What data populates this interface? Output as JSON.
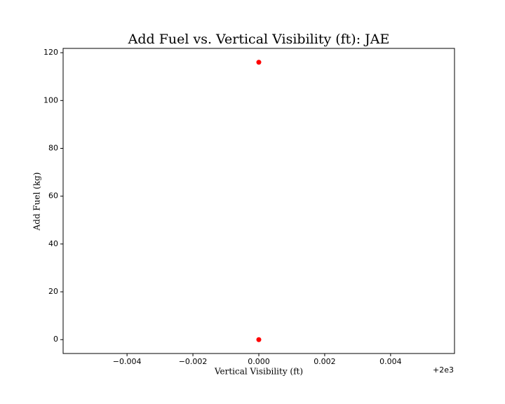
{
  "chart_data": {
    "type": "scatter",
    "title": "Add Fuel vs. Vertical Visibility (ft): JAE",
    "x_label": "Vertical Visibility (ft)",
    "y_label": "Add Fuel (kg)",
    "x_offset_label": "+2e3",
    "x": [
      2000,
      2000
    ],
    "y": [
      116,
      0
    ],
    "color": "#ff0000",
    "xlim": [
      1999.99406,
      2000.00594
    ],
    "ylim": [
      -5.8,
      121.8
    ],
    "xticks": [
      {
        "value": 1999.996,
        "label": "−0.004"
      },
      {
        "value": 1999.998,
        "label": "−0.002"
      },
      {
        "value": 2000,
        "label": "0.000"
      },
      {
        "value": 2000.002,
        "label": "0.002"
      },
      {
        "value": 2000.004,
        "label": "0.004"
      }
    ],
    "yticks": [
      0,
      20,
      40,
      60,
      80,
      100,
      120
    ]
  }
}
